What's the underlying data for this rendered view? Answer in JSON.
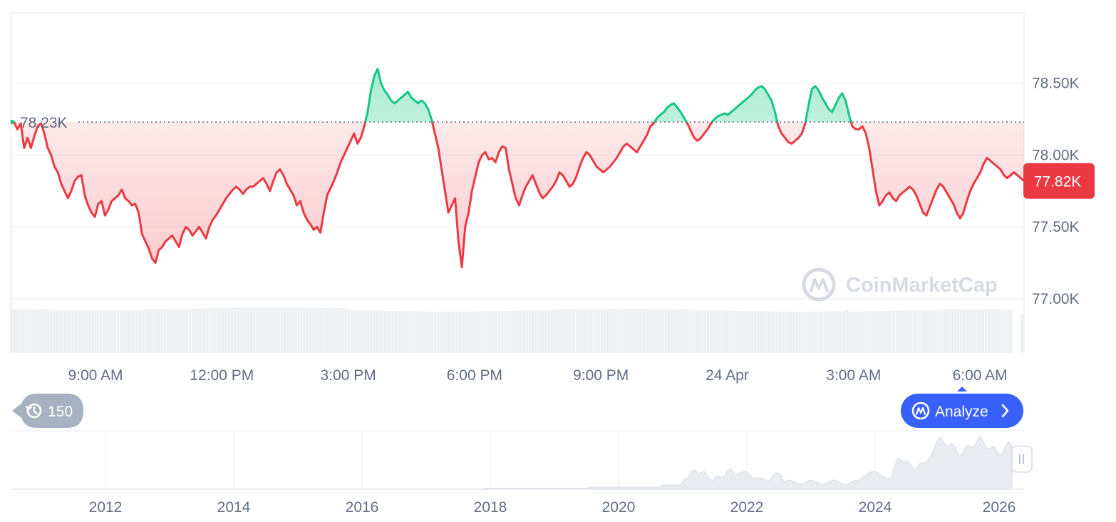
{
  "chart_data": [
    {
      "type": "area",
      "y_ticks": [
        "78.50K",
        "78.00K",
        "77.50K",
        "77.00K"
      ],
      "ylim": [
        76.98,
        78.99
      ],
      "x_ticks": [
        "9:00 AM",
        "12:00 PM",
        "3:00 PM",
        "6:00 PM",
        "9:00 PM",
        "24 Apr",
        "3:00 AM",
        "6:00 AM"
      ],
      "reference_value": 78.23,
      "reference_label": "78.23K",
      "current_label": "77.82K",
      "series": [
        {
          "values": [
            78.23,
            78.23,
            78.18,
            78.22,
            78.05,
            78.12,
            78.05,
            78.13,
            78.2,
            78.22,
            78.15,
            78.05,
            78.0,
            77.92,
            77.88,
            77.8,
            77.75,
            77.7,
            77.75,
            77.82,
            77.85,
            77.86,
            77.72,
            77.65,
            77.6,
            77.57,
            77.66,
            77.68,
            77.58,
            77.62,
            77.68,
            77.7,
            77.72,
            77.76,
            77.7,
            77.68,
            77.65,
            77.66,
            77.6,
            77.45,
            77.4,
            77.35,
            77.28,
            77.25,
            77.34,
            77.36,
            77.4,
            77.42,
            77.44,
            77.4,
            77.36,
            77.45,
            77.5,
            77.48,
            77.44,
            77.47,
            77.5,
            77.46,
            77.42,
            77.5,
            77.55,
            77.58,
            77.62,
            77.66,
            77.7,
            77.73,
            77.76,
            77.78,
            77.76,
            77.73,
            77.76,
            77.78,
            77.78,
            77.8,
            77.82,
            77.84,
            77.8,
            77.75,
            77.82,
            77.88,
            77.9,
            77.86,
            77.8,
            77.76,
            77.72,
            77.65,
            77.68,
            77.6,
            77.55,
            77.52,
            77.48,
            77.5,
            77.46,
            77.6,
            77.72,
            77.77,
            77.82,
            77.88,
            77.95,
            78.0,
            78.05,
            78.1,
            78.15,
            78.08,
            78.12,
            78.2,
            78.3,
            78.45,
            78.55,
            78.6,
            78.5,
            78.45,
            78.42,
            78.38,
            78.36,
            78.38,
            78.4,
            78.42,
            78.44,
            78.4,
            78.38,
            78.36,
            78.38,
            78.36,
            78.32,
            78.25,
            78.15,
            78.05,
            77.9,
            77.75,
            77.6,
            77.65,
            77.7,
            77.4,
            77.22,
            77.5,
            77.6,
            77.75,
            77.85,
            77.95,
            78.0,
            78.02,
            77.97,
            77.98,
            77.95,
            78.02,
            78.06,
            78.05,
            77.9,
            77.8,
            77.7,
            77.65,
            77.72,
            77.78,
            77.82,
            77.86,
            77.8,
            77.74,
            77.7,
            77.72,
            77.75,
            77.78,
            77.82,
            77.88,
            77.86,
            77.82,
            77.78,
            77.8,
            77.85,
            77.92,
            77.98,
            78.02,
            78.0,
            77.96,
            77.92,
            77.9,
            77.88,
            77.9,
            77.92,
            77.95,
            77.98,
            78.02,
            78.06,
            78.08,
            78.06,
            78.04,
            78.02,
            78.06,
            78.1,
            78.14,
            78.2,
            78.22,
            78.26,
            78.28,
            78.3,
            78.33,
            78.35,
            78.36,
            78.33,
            78.3,
            78.26,
            78.22,
            78.17,
            78.12,
            78.1,
            78.12,
            78.15,
            78.18,
            78.22,
            78.25,
            78.27,
            78.28,
            78.29,
            78.28,
            78.3,
            78.32,
            78.34,
            78.36,
            78.38,
            78.4,
            78.42,
            78.45,
            78.47,
            78.48,
            78.46,
            78.42,
            78.38,
            78.3,
            78.2,
            78.15,
            78.12,
            78.09,
            78.08,
            78.1,
            78.12,
            78.15,
            78.22,
            78.35,
            78.46,
            78.48,
            78.45,
            78.4,
            78.36,
            78.32,
            78.3,
            78.35,
            78.4,
            78.43,
            78.38,
            78.28,
            78.2,
            78.18,
            78.18,
            78.2,
            78.15,
            78.05,
            77.9,
            77.75,
            77.65,
            77.68,
            77.72,
            77.74,
            77.7,
            77.68,
            77.72,
            77.74,
            77.76,
            77.78,
            77.76,
            77.72,
            77.66,
            77.6,
            77.58,
            77.64,
            77.7,
            77.76,
            77.8,
            77.78,
            77.74,
            77.7,
            77.66,
            77.6,
            77.56,
            77.6,
            77.68,
            77.75,
            77.8,
            77.84,
            77.88,
            77.94,
            77.98,
            77.96,
            77.94,
            77.92,
            77.9,
            77.86,
            77.84,
            77.86,
            77.88,
            77.86,
            77.84,
            77.82
          ]
        }
      ]
    },
    {
      "type": "area",
      "x_ticks": [
        "2012",
        "2014",
        "2016",
        "2018",
        "2020",
        "2022",
        "2024",
        "2026"
      ]
    }
  ],
  "watermark": "CoinMarketCap",
  "history_pill": {
    "count": "150",
    "icon": "history-icon"
  },
  "analyze_button": {
    "label": "Analyze",
    "icon": "coinmarketcap-logo-icon"
  },
  "colors": {
    "up": "#16c784",
    "down": "#ea3943",
    "accent": "#3861fb"
  }
}
